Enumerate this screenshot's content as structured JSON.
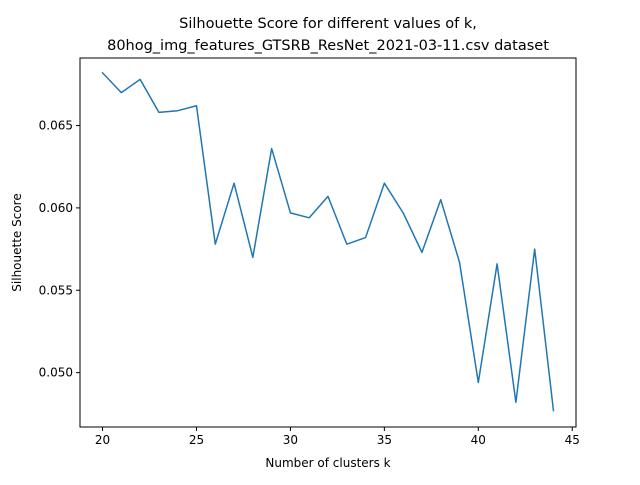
{
  "chart_data": {
    "type": "line",
    "title": "Silhouette Score for different values of k,",
    "subtitle": "80hog_img_features_GTSRB_ResNet_2021-03-11.csv dataset",
    "xlabel": "Number of clusters k",
    "ylabel": "Silhouette Score",
    "xlim": [
      18.8,
      45.2
    ],
    "ylim": [
      0.0467,
      0.0691
    ],
    "xticks": [
      20,
      25,
      30,
      35,
      40,
      45
    ],
    "yticks": [
      0.05,
      0.055,
      0.06,
      0.065
    ],
    "xtick_labels": [
      "20",
      "25",
      "30",
      "35",
      "40",
      "45"
    ],
    "ytick_labels": [
      "0.050",
      "0.055",
      "0.060",
      "0.065"
    ],
    "grid": false,
    "series": [
      {
        "color": "#1f77b4",
        "x": [
          20,
          21,
          22,
          23,
          24,
          25,
          26,
          27,
          28,
          29,
          30,
          31,
          32,
          33,
          34,
          35,
          36,
          37,
          38,
          39,
          40,
          41,
          42,
          43,
          44
        ],
        "y": [
          0.0682,
          0.067,
          0.0678,
          0.0658,
          0.0659,
          0.0662,
          0.0578,
          0.0615,
          0.057,
          0.0636,
          0.0597,
          0.0594,
          0.0607,
          0.0578,
          0.0582,
          0.0615,
          0.0597,
          0.0573,
          0.0605,
          0.0567,
          0.0494,
          0.0566,
          0.0482,
          0.0575,
          0.0477
        ]
      }
    ]
  }
}
